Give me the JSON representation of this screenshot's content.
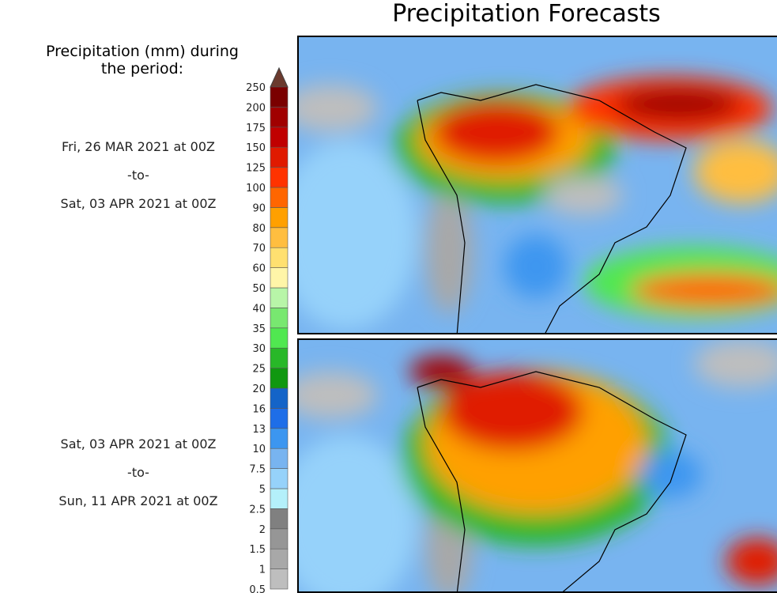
{
  "chart_data": {
    "type": "heatmap",
    "title": "Precipitation Forecasts",
    "colorbar_label": "Precipitation (mm) during the period:",
    "colorbar_levels": [
      "0.5",
      "1",
      "1.5",
      "2",
      "2.5",
      "5",
      "7.5",
      "10",
      "13",
      "16",
      "20",
      "25",
      "30",
      "35",
      "40",
      "50",
      "60",
      "70",
      "80",
      "90",
      "100",
      "125",
      "150",
      "175",
      "200",
      "250"
    ],
    "colorbar_colors": [
      "#bebebe",
      "#a8a8a8",
      "#969696",
      "#808080",
      "#b4f0fa",
      "#96d2fa",
      "#78b4f0",
      "#3c96f0",
      "#1e6ee8",
      "#1464c8",
      "#109810",
      "#28b828",
      "#50e850",
      "#78e870",
      "#b8f5a8",
      "#fff5a8",
      "#ffe070",
      "#ffbe40",
      "#ffa000",
      "#ff6600",
      "#ff3300",
      "#e01a00",
      "#c00000",
      "#a00000",
      "#7a0000"
    ],
    "extend_color": "#6b3a2e",
    "panels": [
      {
        "from": "Fri, 26 MAR 2021 at 00Z",
        "sep": "-to-",
        "to": "Sat, 03 APR 2021 at 00Z"
      },
      {
        "from": "Sat, 03 APR 2021 at 00Z",
        "sep": "-to-",
        "to": "Sun, 11 APR 2021 at 00Z"
      }
    ]
  }
}
